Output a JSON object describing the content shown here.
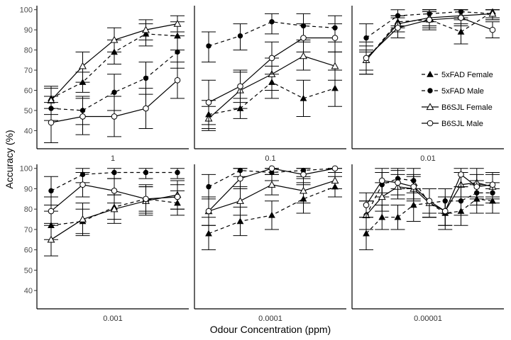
{
  "chart_data": {
    "type": "line",
    "xlabel": "Odour Concentration (ppm)",
    "ylabel": "Accuracy (%)",
    "ylim": [
      31,
      102
    ],
    "yticks": [
      40,
      50,
      60,
      70,
      80,
      90,
      100
    ],
    "grid": false,
    "legend_position": "right, inside top-right panel",
    "panels": [
      "1",
      "0.1",
      "0.01",
      "0.001",
      "0.0001",
      "0.00001"
    ],
    "sessions": [
      1,
      2,
      3,
      4,
      5
    ],
    "series": [
      {
        "name": "5xFAD Female",
        "marker": "filled-triangle",
        "line": "dashed",
        "panels": [
          {
            "mean": [
              56,
              64,
              79,
              88,
              87
            ],
            "lo": [
              51,
              59,
              73,
              82,
              80
            ],
            "hi": [
              61,
              69,
              85,
              93,
              94
            ]
          },
          {
            "mean": [
              48,
              51,
              64,
              56,
              61
            ],
            "lo": [
              41,
              46,
              56,
              47,
              52
            ],
            "hi": [
              55,
              56,
              72,
              65,
              70
            ]
          },
          {
            "mean": [
              75,
              94,
              95,
              89,
              99
            ],
            "lo": [
              70,
              91,
              90,
              83,
              96
            ],
            "hi": [
              80,
              97,
              100,
              95,
              100
            ]
          },
          {
            "mean": [
              72,
              74,
              81,
              85,
              83
            ],
            "lo": [
              65,
              68,
              75,
              78,
              77
            ],
            "hi": [
              79,
              80,
              87,
              92,
              89
            ]
          },
          {
            "mean": [
              68,
              74,
              77,
              85,
              91
            ],
            "lo": [
              60,
              67,
              70,
              78,
              86
            ],
            "hi": [
              76,
              81,
              84,
              92,
              96
            ]
          },
          {
            "mean": [
              68,
              76,
              76,
              82,
              83,
              78,
              79,
              85,
              84
            ],
            "lo": [
              60,
              70,
              70,
              74,
              76,
              70,
              72,
              78,
              78
            ],
            "hi": [
              76,
              82,
              82,
              90,
              90,
              86,
              86,
              92,
              90
            ]
          }
        ]
      },
      {
        "name": "5xFAD Male",
        "marker": "filled-circle",
        "line": "dashed",
        "panels": [
          {
            "mean": [
              51,
              50,
              59,
              66,
              79
            ],
            "lo": [
              45,
              43,
              50,
              58,
              71
            ],
            "hi": [
              57,
              57,
              68,
              74,
              87
            ]
          },
          {
            "mean": [
              82,
              87,
              94,
              92,
              91
            ],
            "lo": [
              74,
              80,
              88,
              85,
              84
            ],
            "hi": [
              89,
              93,
              98,
              98,
              97
            ]
          },
          {
            "mean": [
              86,
              97,
              98,
              99,
              98
            ],
            "lo": [
              79,
              92,
              94,
              96,
              95
            ],
            "hi": [
              93,
              100,
              100,
              100,
              100
            ]
          },
          {
            "mean": [
              89,
              97,
              98,
              98,
              98
            ],
            "lo": [
              82,
              93,
              95,
              95,
              95
            ],
            "hi": [
              96,
              100,
              100,
              100,
              100
            ]
          },
          {
            "mean": [
              91,
              99,
              98,
              99,
              100
            ],
            "lo": [
              85,
              96,
              94,
              96,
              98
            ],
            "hi": [
              97,
              100,
              100,
              100,
              100
            ]
          },
          {
            "mean": [
              77,
              92,
              95,
              94,
              83,
              84,
              84,
              88,
              88
            ],
            "lo": [
              70,
              86,
              90,
              88,
              76,
              78,
              77,
              82,
              83
            ],
            "hi": [
              84,
              98,
              100,
              100,
              90,
              90,
              91,
              94,
              93
            ]
          }
        ]
      },
      {
        "name": "B6SJL Female",
        "marker": "open-triangle",
        "line": "solid",
        "panels": [
          {
            "mean": [
              55,
              72,
              85,
              90,
              93
            ],
            "lo": [
              48,
              64,
              79,
              85,
              89
            ],
            "hi": [
              62,
              79,
              91,
              95,
              97
            ]
          },
          {
            "mean": [
              46,
              60,
              68,
              77,
              72
            ],
            "lo": [
              40,
              51,
              60,
              70,
              65
            ],
            "hi": [
              52,
              69,
              76,
              84,
              79
            ]
          },
          {
            "mean": [
              75,
              93,
              96,
              97,
              98
            ],
            "lo": [
              68,
              89,
              92,
              93,
              95
            ],
            "hi": [
              82,
              97,
              100,
              100,
              100
            ]
          },
          {
            "mean": [
              65,
              75,
              80,
              84,
              87
            ],
            "lo": [
              57,
              67,
              73,
              77,
              80
            ],
            "hi": [
              73,
              83,
              87,
              91,
              94
            ]
          },
          {
            "mean": [
              79,
              84,
              92,
              89,
              94
            ],
            "lo": [
              72,
              77,
              87,
              83,
              90
            ],
            "hi": [
              86,
              91,
              97,
              95,
              98
            ]
          },
          {
            "mean": [
              77,
              86,
              91,
              90,
              83,
              79,
              92,
              93,
              91
            ],
            "lo": [
              70,
              79,
              85,
              84,
              76,
              72,
              86,
              86,
              85
            ],
            "hi": [
              84,
              93,
              97,
              96,
              90,
              86,
              98,
              100,
              97
            ]
          }
        ]
      },
      {
        "name": "B6SJL Male",
        "marker": "open-circle",
        "line": "solid",
        "panels": [
          {
            "mean": [
              44,
              47,
              47,
              51,
              65
            ],
            "lo": [
              34,
              38,
              37,
              41,
              56
            ],
            "hi": [
              54,
              56,
              57,
              61,
              74
            ]
          },
          {
            "mean": [
              54,
              62,
              76,
              86,
              86
            ],
            "lo": [
              43,
              54,
              68,
              79,
              79
            ],
            "hi": [
              65,
              70,
              84,
              93,
              93
            ]
          },
          {
            "mean": [
              76,
              91,
              95,
              96,
              90
            ],
            "lo": [
              68,
              86,
              91,
              92,
              86
            ],
            "hi": [
              84,
              96,
              99,
              100,
              94
            ]
          },
          {
            "mean": [
              79,
              92,
              89,
              85,
              86
            ],
            "lo": [
              72,
              86,
              83,
              79,
              80
            ],
            "hi": [
              86,
              98,
              95,
              91,
              92
            ]
          },
          {
            "mean": [
              79,
              95,
              100,
              97,
              100
            ],
            "lo": [
              72,
              90,
              97,
              93,
              98
            ],
            "hi": [
              86,
              100,
              100,
              100,
              100
            ]
          },
          {
            "mean": [
              82,
              94,
              93,
              91,
              84,
              79,
              97,
              91,
              92
            ],
            "lo": [
              76,
              88,
              87,
              85,
              78,
              72,
              91,
              85,
              86
            ],
            "hi": [
              88,
              100,
              99,
              97,
              90,
              86,
              100,
              97,
              98
            ]
          }
        ]
      }
    ]
  }
}
